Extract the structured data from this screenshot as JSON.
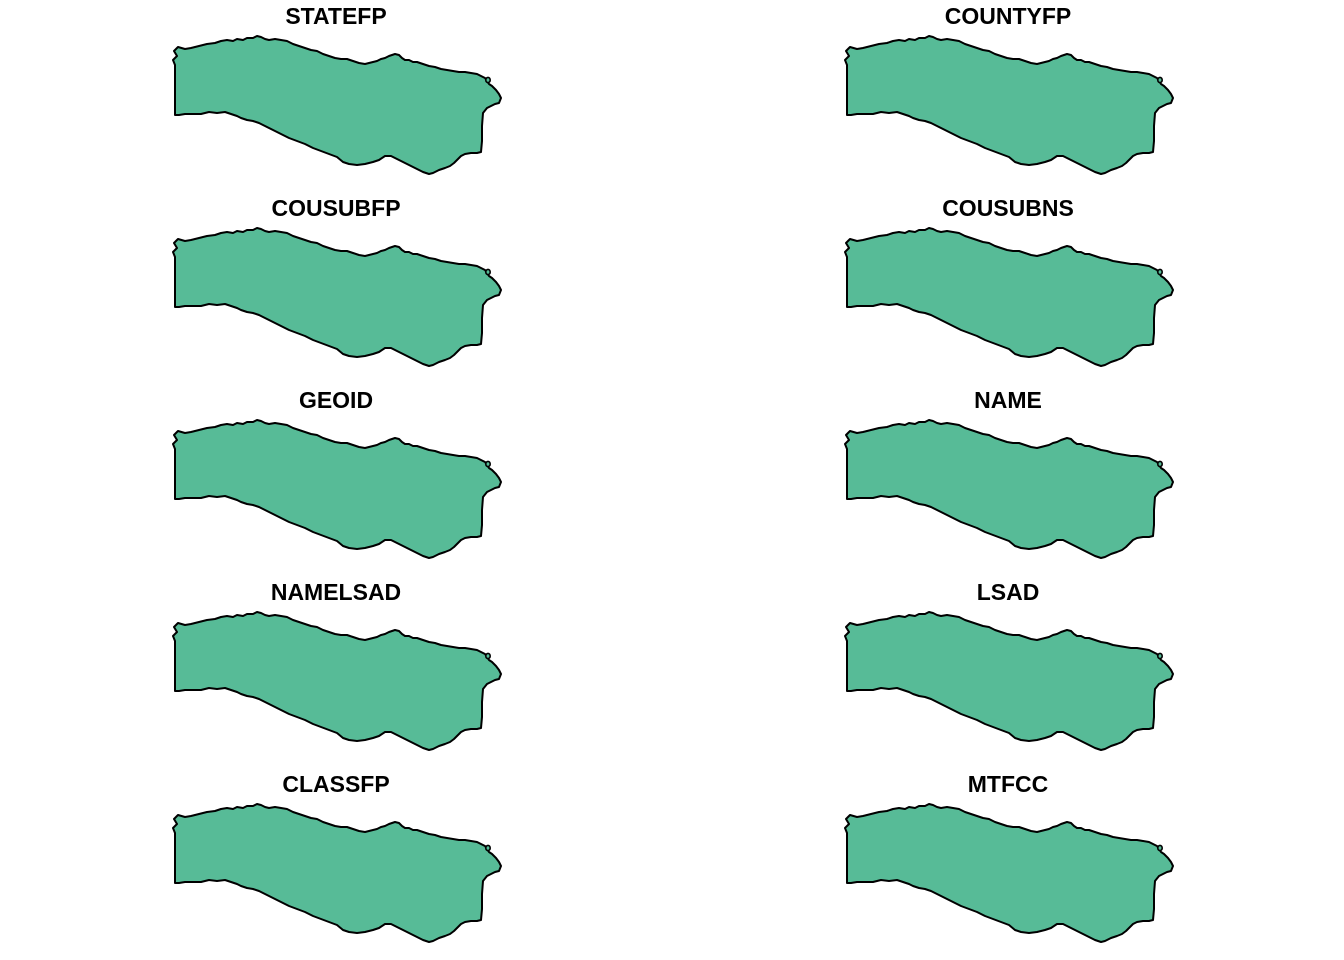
{
  "colors": {
    "fill": "#57BB97",
    "stroke": "#000000",
    "background": "#FFFFFF"
  },
  "panels": [
    {
      "title": "STATEFP"
    },
    {
      "title": "COUNTYFP"
    },
    {
      "title": "COUSUBFP"
    },
    {
      "title": "COUSUBNS"
    },
    {
      "title": "GEOID"
    },
    {
      "title": "NAME"
    },
    {
      "title": "NAMELSAD"
    },
    {
      "title": "LSAD"
    },
    {
      "title": "CLASSFP"
    },
    {
      "title": "MTFCC"
    }
  ]
}
